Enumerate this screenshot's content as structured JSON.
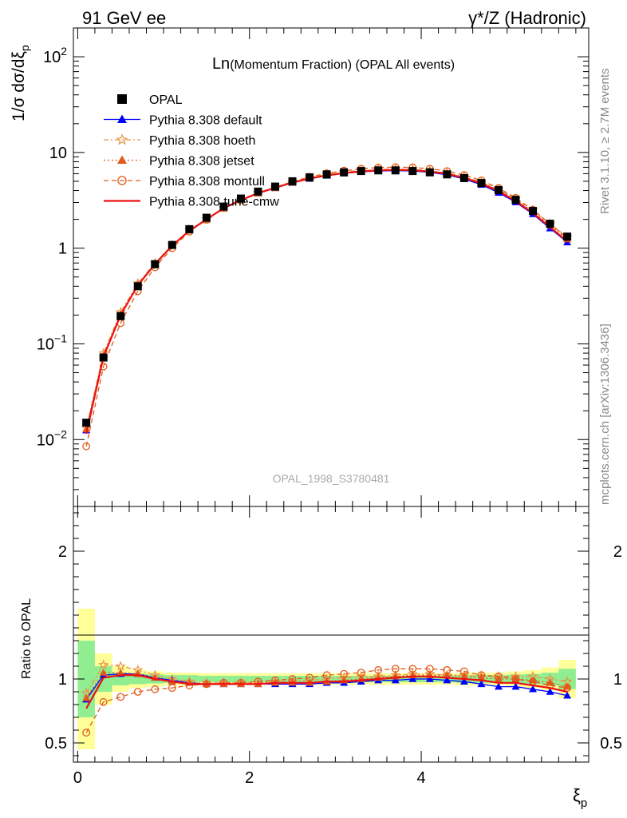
{
  "header": {
    "left": "91 GeV ee",
    "right": "γ*/Z (Hadronic)"
  },
  "side_labels": {
    "top": "Rivet 3.1.10, ≥ 2.7M events",
    "bottom": "mcplots.cern.ch [arXiv:1306.3436]"
  },
  "watermark": "OPAL_1998_S3780481",
  "chart_data": [
    {
      "panel": "main",
      "type": "line",
      "title_main": "Ln",
      "title_rest": "(Momentum Fraction) (OPAL All events)",
      "ylabel": "1/σ dσ/dξ",
      "ylabel_sub": "p",
      "yscale": "log",
      "ylim": [
        0.002,
        200
      ],
      "xlim": [
        -0.05,
        5.95
      ],
      "y_ticks": [
        {
          "value": 100,
          "base": "10",
          "exp": "2"
        },
        {
          "value": 10,
          "base": "10",
          "exp": ""
        },
        {
          "value": 1,
          "base": "1",
          "exp": ""
        },
        {
          "value": 0.1,
          "base": "10",
          "exp": "−1"
        },
        {
          "value": 0.01,
          "base": "10",
          "exp": "−2"
        }
      ],
      "x": [
        0.1,
        0.3,
        0.5,
        0.7,
        0.9,
        1.1,
        1.3,
        1.5,
        1.7,
        1.9,
        2.1,
        2.3,
        2.5,
        2.7,
        2.9,
        3.1,
        3.3,
        3.5,
        3.7,
        3.9,
        4.1,
        4.3,
        4.5,
        4.7,
        4.9,
        5.1,
        5.3,
        5.5,
        5.7
      ],
      "data": {
        "name": "OPAL",
        "values": [
          0.015,
          0.072,
          0.195,
          0.4,
          0.68,
          1.08,
          1.58,
          2.08,
          2.72,
          3.3,
          3.9,
          4.4,
          5.0,
          5.5,
          5.9,
          6.2,
          6.4,
          6.5,
          6.5,
          6.4,
          6.2,
          5.9,
          5.4,
          4.8,
          4.05,
          3.2,
          2.45,
          1.8,
          1.32
        ]
      },
      "legend_position": "top-left",
      "series": [
        {
          "name": "Pythia 8.308 default",
          "color": "#0000ff",
          "dash": "",
          "marker": "triangle-filled",
          "values": [
            0.0125,
            0.075,
            0.2,
            0.415,
            0.69,
            1.07,
            1.53,
            2.0,
            2.62,
            3.2,
            3.76,
            4.25,
            4.82,
            5.3,
            5.72,
            6.05,
            6.28,
            6.4,
            6.46,
            6.4,
            6.2,
            5.85,
            5.28,
            4.6,
            3.8,
            3.02,
            2.27,
            1.61,
            1.15
          ]
        },
        {
          "name": "Pythia 8.308 hoeth",
          "color": "#e8964a",
          "dash": "6,3,2,3",
          "marker": "star-open",
          "values": [
            0.0133,
            0.08,
            0.215,
            0.43,
            0.7,
            1.08,
            1.54,
            2.01,
            2.63,
            3.2,
            3.78,
            4.3,
            4.88,
            5.45,
            5.9,
            6.25,
            6.5,
            6.65,
            6.72,
            6.68,
            6.45,
            6.1,
            5.55,
            4.9,
            4.12,
            3.28,
            2.5,
            1.8,
            1.3
          ]
        },
        {
          "name": "Pythia 8.308 jetset",
          "color": "#e05a1a",
          "dash": "2,3",
          "marker": "triangle-filled",
          "values": [
            0.0128,
            0.076,
            0.205,
            0.415,
            0.69,
            1.06,
            1.53,
            2.0,
            2.6,
            3.18,
            3.75,
            4.28,
            4.85,
            5.35,
            5.78,
            6.12,
            6.38,
            6.55,
            6.62,
            6.58,
            6.38,
            6.05,
            5.5,
            4.85,
            4.05,
            3.2,
            2.42,
            1.74,
            1.24
          ]
        },
        {
          "name": "Pythia 8.308 montull",
          "color": "#e05a1a",
          "dash": "6,4",
          "marker": "circle-open",
          "values": [
            0.0085,
            0.058,
            0.165,
            0.355,
            0.63,
            1.0,
            1.49,
            1.98,
            2.63,
            3.22,
            3.8,
            4.33,
            4.95,
            5.55,
            6.05,
            6.45,
            6.75,
            6.95,
            7.02,
            6.98,
            6.75,
            6.38,
            5.8,
            5.1,
            4.25,
            3.35,
            2.52,
            1.8,
            1.28
          ]
        },
        {
          "name": "Pythia 8.308 tune-cmw",
          "color": "#ee1111",
          "dash": "",
          "marker": "none",
          "values": [
            0.0115,
            0.073,
            0.2,
            0.41,
            0.68,
            1.06,
            1.52,
            2.0,
            2.62,
            3.18,
            3.76,
            4.27,
            4.85,
            5.33,
            5.76,
            6.1,
            6.34,
            6.5,
            6.58,
            6.52,
            6.32,
            5.98,
            5.42,
            4.74,
            3.94,
            3.1,
            2.33,
            1.66,
            1.18
          ]
        }
      ]
    },
    {
      "panel": "ratio",
      "type": "line",
      "ylabel": "Ratio to OPAL",
      "xlabel": "ξ",
      "xlabel_sub": "p",
      "ylim": [
        0.35,
        2.35
      ],
      "xlim": [
        -0.05,
        5.95
      ],
      "x_ticks": [
        0,
        2,
        4
      ],
      "y_ticks": [
        0.5,
        1,
        2
      ],
      "bands": {
        "inner_color": "#90ee90",
        "outer_color": "#ffff99",
        "inner": [
          0.3,
          0.1,
          0.05,
          0.04,
          0.035,
          0.03,
          0.03,
          0.025,
          0.025,
          0.025,
          0.025,
          0.025,
          0.025,
          0.025,
          0.025,
          0.025,
          0.025,
          0.025,
          0.025,
          0.025,
          0.025,
          0.025,
          0.03,
          0.03,
          0.03,
          0.035,
          0.04,
          0.05,
          0.08
        ],
        "outer": [
          0.55,
          0.2,
          0.1,
          0.07,
          0.06,
          0.05,
          0.05,
          0.045,
          0.045,
          0.045,
          0.045,
          0.045,
          0.045,
          0.045,
          0.045,
          0.045,
          0.045,
          0.045,
          0.045,
          0.045,
          0.045,
          0.045,
          0.05,
          0.05,
          0.05,
          0.06,
          0.07,
          0.09,
          0.15
        ]
      },
      "series": [
        {
          "name": "Pythia 8.308 default",
          "values": [
            0.84,
            1.03,
            1.04,
            1.04,
            1.01,
            0.99,
            0.97,
            0.96,
            0.96,
            0.96,
            0.96,
            0.96,
            0.96,
            0.96,
            0.97,
            0.97,
            0.98,
            0.99,
            0.99,
            1.0,
            1.0,
            0.99,
            0.98,
            0.96,
            0.94,
            0.94,
            0.92,
            0.9,
            0.87
          ]
        },
        {
          "name": "Pythia 8.308 hoeth",
          "values": [
            0.89,
            1.11,
            1.1,
            1.07,
            1.03,
            1.0,
            0.98,
            0.97,
            0.97,
            0.97,
            0.97,
            0.98,
            0.98,
            0.99,
            1.0,
            1.01,
            1.02,
            1.02,
            1.03,
            1.04,
            1.04,
            1.03,
            1.03,
            1.02,
            1.02,
            1.02,
            1.02,
            1.0,
            0.98
          ]
        },
        {
          "name": "Pythia 8.308 jetset",
          "values": [
            0.85,
            1.05,
            1.05,
            1.04,
            1.01,
            0.98,
            0.97,
            0.96,
            0.96,
            0.96,
            0.96,
            0.97,
            0.97,
            0.97,
            0.98,
            0.99,
            1.0,
            1.01,
            1.02,
            1.03,
            1.03,
            1.03,
            1.02,
            1.01,
            1.0,
            1.0,
            0.99,
            0.97,
            0.94
          ]
        },
        {
          "name": "Pythia 8.308 montull",
          "values": [
            0.58,
            0.82,
            0.86,
            0.9,
            0.92,
            0.93,
            0.95,
            0.96,
            0.97,
            0.97,
            0.98,
            0.99,
            1.0,
            1.01,
            1.03,
            1.04,
            1.05,
            1.07,
            1.08,
            1.08,
            1.08,
            1.07,
            1.06,
            1.03,
            1.02,
            1.0,
            0.98,
            0.95,
            0.93
          ]
        },
        {
          "name": "Pythia 8.308 tune-cmw",
          "values": [
            0.77,
            1.01,
            1.03,
            1.03,
            1.0,
            0.98,
            0.96,
            0.96,
            0.96,
            0.96,
            0.96,
            0.97,
            0.97,
            0.97,
            0.98,
            0.98,
            0.99,
            1.0,
            1.01,
            1.02,
            1.02,
            1.01,
            1.0,
            0.99,
            0.97,
            0.97,
            0.95,
            0.93,
            0.9
          ]
        }
      ]
    }
  ]
}
